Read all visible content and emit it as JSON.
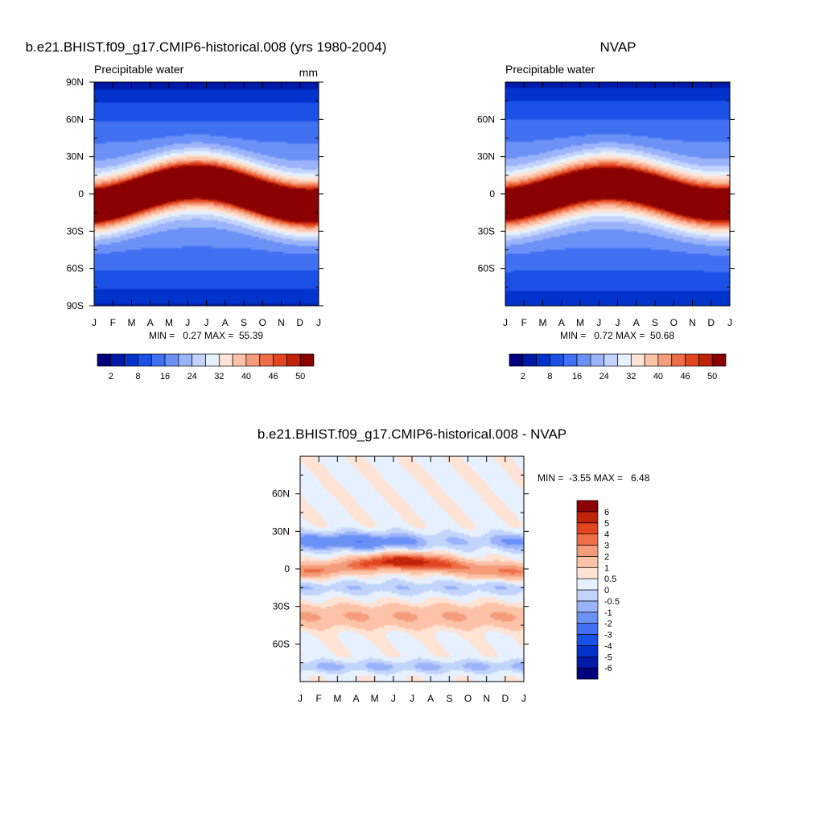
{
  "chart_data": [
    {
      "id": "model",
      "type": "heatmap",
      "title": "b.e21.BHIST.f09_g17.CMIP6-historical.008 (yrs 1980-2004)",
      "subtitle": "Precipitable water",
      "units": "mm",
      "x_ticks": [
        "J",
        "F",
        "M",
        "A",
        "M",
        "J",
        "J",
        "A",
        "S",
        "O",
        "N",
        "D",
        "J"
      ],
      "y_ticks": [
        {
          "lat": 90,
          "label": "90N"
        },
        {
          "lat": 60,
          "label": "60N"
        },
        {
          "lat": 30,
          "label": "30N"
        },
        {
          "lat": 0,
          "label": "0"
        },
        {
          "lat": -30,
          "label": "30S"
        },
        {
          "lat": -60,
          "label": "60S"
        },
        {
          "lat": -90,
          "label": "90S"
        }
      ],
      "ylim": [
        -90,
        90
      ],
      "stats": "MIN =   0.27 MAX =  55.39",
      "min": 0.27,
      "max": 55.39,
      "field": {
        "eqAmp": 48,
        "eqWidth": 20,
        "shiftAmp": 10,
        "shiftPhase": -1.3,
        "polarN": 3,
        "polarS": 1.5
      },
      "levels": [
        2,
        5,
        8,
        12,
        16,
        20,
        24,
        28,
        32,
        36,
        40,
        43,
        46,
        48,
        50
      ],
      "colorbar_labels": [
        "2",
        "8",
        "16",
        "24",
        "32",
        "40",
        "46",
        "50"
      ],
      "colors": [
        "#00007f",
        "#0019a8",
        "#0033cc",
        "#1a50e6",
        "#4170f2",
        "#6b91f7",
        "#9ab3fa",
        "#c3d4fc",
        "#e6f0ff",
        "#ffe3d4",
        "#fcc3a8",
        "#f59c7a",
        "#ee6e48",
        "#e3451f",
        "#bf2408",
        "#8b0000"
      ]
    },
    {
      "id": "obs",
      "type": "heatmap",
      "title": "NVAP",
      "subtitle": "Precipitable water",
      "x_ticks": [
        "J",
        "F",
        "M",
        "A",
        "M",
        "J",
        "J",
        "A",
        "S",
        "O",
        "N",
        "D",
        "J"
      ],
      "y_ticks": [
        {
          "lat": 60,
          "label": "60N"
        },
        {
          "lat": 30,
          "label": "30N"
        },
        {
          "lat": 0,
          "label": "0"
        },
        {
          "lat": -30,
          "label": "30S"
        },
        {
          "lat": -60,
          "label": "60S"
        }
      ],
      "ylim": [
        -90,
        90
      ],
      "stats": "MIN =   0.72 MAX =  50.68",
      "min": 0.72,
      "max": 50.68,
      "field": {
        "eqAmp": 44,
        "eqWidth": 21,
        "shiftAmp": 9,
        "shiftPhase": -1.3,
        "polarN": 2.5,
        "polarS": 1.2
      },
      "levels": [
        2,
        5,
        8,
        12,
        16,
        20,
        24,
        28,
        32,
        36,
        40,
        43,
        46,
        48,
        50
      ],
      "colorbar_labels": [
        "2",
        "8",
        "16",
        "24",
        "32",
        "40",
        "46",
        "50"
      ],
      "colors": [
        "#00007f",
        "#0019a8",
        "#0033cc",
        "#1a50e6",
        "#4170f2",
        "#6b91f7",
        "#9ab3fa",
        "#c3d4fc",
        "#e6f0ff",
        "#ffe3d4",
        "#fcc3a8",
        "#f59c7a",
        "#ee6e48",
        "#e3451f",
        "#bf2408",
        "#8b0000"
      ]
    },
    {
      "id": "diff",
      "type": "heatmap",
      "title": "b.e21.BHIST.f09_g17.CMIP6-historical.008 - NVAP",
      "x_ticks": [
        "J",
        "F",
        "M",
        "A",
        "M",
        "J",
        "J",
        "A",
        "S",
        "O",
        "N",
        "D",
        "J"
      ],
      "y_ticks": [
        {
          "lat": 60,
          "label": "60N"
        },
        {
          "lat": 30,
          "label": "30N"
        },
        {
          "lat": 0,
          "label": "0"
        },
        {
          "lat": -30,
          "label": "30S"
        },
        {
          "lat": -60,
          "label": "60S"
        }
      ],
      "ylim": [
        -90,
        90
      ],
      "stats": "MIN =  -3.55 MAX =   6.48",
      "min": -3.55,
      "max": 6.48,
      "levels": [
        -6,
        -5,
        -4,
        -3,
        -2,
        -1,
        -0.5,
        0,
        0.5,
        1,
        2,
        3,
        4,
        5,
        6
      ],
      "colorbar_labels": [
        "-6",
        "-5",
        "-4",
        "-3",
        "-2",
        "-1",
        "-0.5",
        "0",
        "0.5",
        "1",
        "2",
        "3",
        "4",
        "5",
        "6"
      ],
      "colors": [
        "#00007f",
        "#0019a8",
        "#0033cc",
        "#1a50e6",
        "#4170f2",
        "#6b91f7",
        "#9ab3fa",
        "#c3d4fc",
        "#e6f0ff",
        "#ffe3d4",
        "#fcc3a8",
        "#f59c7a",
        "#ee6e48",
        "#e3451f",
        "#bf2408",
        "#8b0000"
      ]
    }
  ]
}
